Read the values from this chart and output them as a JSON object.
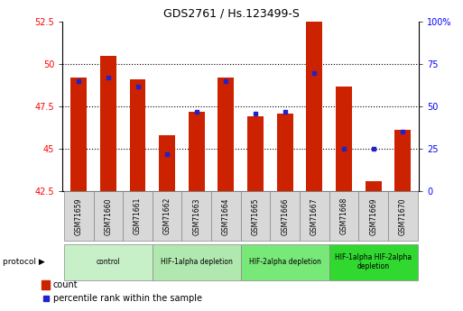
{
  "title": "GDS2761 / Hs.123499-S",
  "samples": [
    "GSM71659",
    "GSM71660",
    "GSM71661",
    "GSM71662",
    "GSM71663",
    "GSM71664",
    "GSM71665",
    "GSM71666",
    "GSM71667",
    "GSM71668",
    "GSM71669",
    "GSM71670"
  ],
  "count_values": [
    49.2,
    50.5,
    49.1,
    45.8,
    47.2,
    49.2,
    46.9,
    47.1,
    52.6,
    48.7,
    43.1,
    46.1
  ],
  "percentile_values": [
    65,
    67,
    62,
    22,
    47,
    65,
    46,
    47,
    70,
    25,
    25,
    35
  ],
  "y_min": 42.5,
  "y_max": 52.5,
  "y_ticks": [
    42.5,
    45.0,
    47.5,
    50.0,
    52.5
  ],
  "y2_ticks": [
    0,
    25,
    50,
    75,
    100
  ],
  "y2_labels": [
    "0",
    "25",
    "50",
    "75",
    "100%"
  ],
  "bar_color": "#cc2200",
  "dot_color": "#2222cc",
  "protocol_groups": [
    {
      "label": "control",
      "indices": [
        0,
        1,
        2
      ],
      "color": "#c8f0c8"
    },
    {
      "label": "HIF-1alpha depletion",
      "indices": [
        3,
        4,
        5
      ],
      "color": "#b0e8b0"
    },
    {
      "label": "HIF-2alpha depletion",
      "indices": [
        6,
        7,
        8
      ],
      "color": "#78e878"
    },
    {
      "label": "HIF-1alpha HIF-2alpha\ndepletion",
      "indices": [
        9,
        10,
        11
      ],
      "color": "#30d830"
    }
  ],
  "legend_count_label": "count",
  "legend_percentile_label": "percentile rank within the sample"
}
